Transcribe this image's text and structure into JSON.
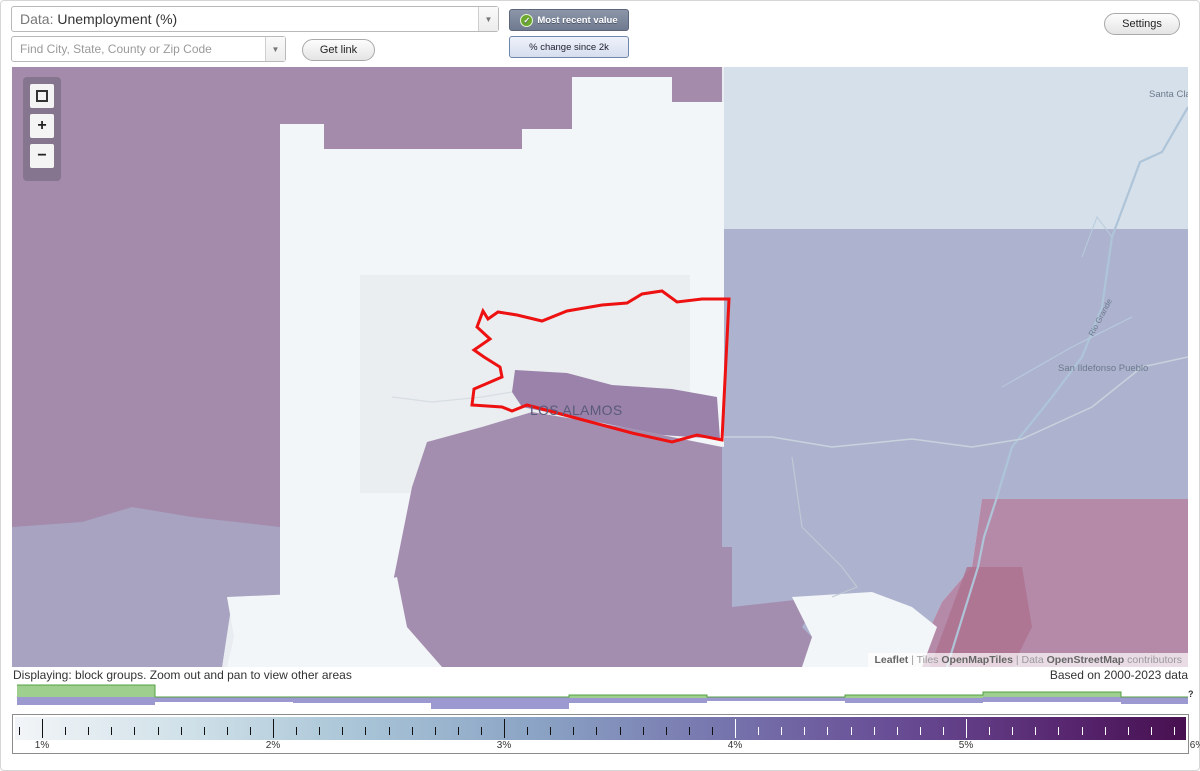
{
  "app": {
    "settings_label": "Settings"
  },
  "data_select": {
    "prefix": "Data:",
    "value": "Unemployment (%)"
  },
  "search": {
    "placeholder": "Find City, State, County or Zip Code",
    "value": ""
  },
  "get_link_label": "Get link",
  "view_toggle": {
    "active_label": "Most recent value",
    "inactive_label": "% change since 2k"
  },
  "map": {
    "zoom_in": "+",
    "zoom_out": "−",
    "labels": {
      "place": "LOS ALAMOS",
      "santa_clara": "Santa Cla",
      "san_ildefonso": "San Ildefonso Pueblo",
      "river": "Rio Grande"
    },
    "attribution": {
      "leaflet": "Leaflet",
      "sep1": " | Tiles ",
      "tiles": "OpenMapTiles",
      "sep2": " | Data ",
      "data": "OpenStreetMap",
      "contrib": " contributors"
    },
    "highlight_color": "#ee1111"
  },
  "footer": {
    "displaying": "Displaying: block groups. Zoom out and pan to view other areas",
    "based_on": "Based on 2000-2023 data"
  },
  "legend": {
    "ticks": [
      "1%",
      "2%",
      "3%",
      "4%",
      "5%",
      "6%"
    ],
    "gradient_colors": [
      "#f2f5f8",
      "#a7c3d6",
      "#7776ae",
      "#57266f",
      "#47104f"
    ]
  },
  "distribution_marker": "?"
}
